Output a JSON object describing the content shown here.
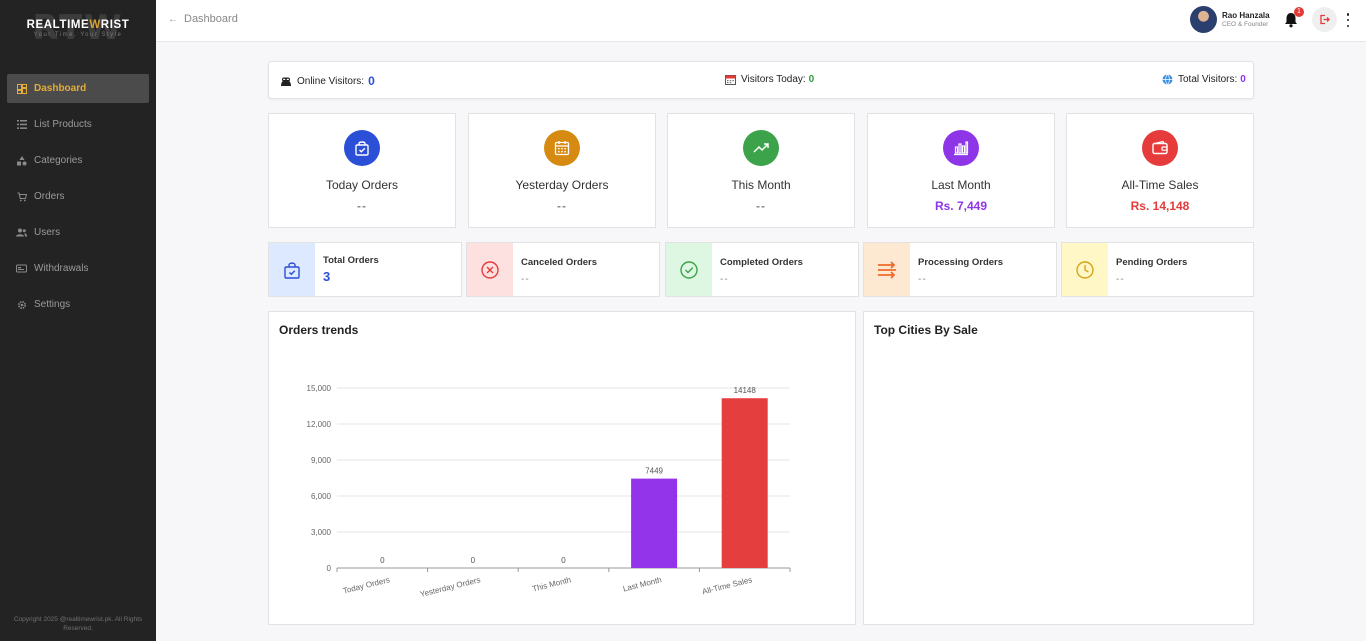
{
  "sidebar": {
    "logo": {
      "bg": "RTW",
      "main_a": "REALTIME",
      "main_b": "W",
      "main_c": "RIST",
      "tagline": "Your Time, Your Style"
    },
    "items": [
      {
        "label": "Dashboard",
        "icon": "dashboard-icon",
        "active": true
      },
      {
        "label": "List Products",
        "icon": "list-icon"
      },
      {
        "label": "Categories",
        "icon": "categories-icon"
      },
      {
        "label": "Orders",
        "icon": "cart-icon"
      },
      {
        "label": "Users",
        "icon": "users-icon"
      },
      {
        "label": "Withdrawals",
        "icon": "wallet-icon"
      },
      {
        "label": "Settings",
        "icon": "gear-icon"
      }
    ],
    "copyright": "Copyright 2025 @realtimewrist.pk. All Rights Reserved."
  },
  "header": {
    "breadcrumb": "Dashboard",
    "user_name": "Rao Hanzala",
    "user_role": "CEO & Founder",
    "notification_count": "1"
  },
  "visitors": {
    "online_label": "Online Visitors:",
    "online_value": "0",
    "today_label": "Visitors Today:",
    "today_value": "0",
    "total_label": "Total Visitors:",
    "total_value": "0"
  },
  "stats": [
    {
      "label": "Today Orders",
      "value": "--",
      "color": "#2b4fd6",
      "icon": "shopping-bag-icon"
    },
    {
      "label": "Yesterday Orders",
      "value": "--",
      "color": "#d68a12",
      "icon": "calendar-icon"
    },
    {
      "label": "This Month",
      "value": "--",
      "color": "#3da34a",
      "icon": "trending-up-icon"
    },
    {
      "label": "Last Month",
      "value": "Rs. 7,449",
      "color": "#8e35e8",
      "icon": "bar-chart-icon"
    },
    {
      "label": "All-Time Sales",
      "value": "Rs. 14,148",
      "color": "#e53b3b",
      "icon": "wallet-icon"
    }
  ],
  "orders": [
    {
      "label": "Total Orders",
      "value": "3",
      "bg": "#dde9ff",
      "color": "#2b4fd6",
      "icon": "shopping-bag-icon"
    },
    {
      "label": "Canceled Orders",
      "value": "--",
      "bg": "#fde0e0",
      "color": "#e53b3b",
      "icon": "x-circle-icon"
    },
    {
      "label": "Completed Orders",
      "value": "--",
      "bg": "#def7e3",
      "color": "#3da34a",
      "icon": "check-circle-icon"
    },
    {
      "label": "Processing Orders",
      "value": "--",
      "bg": "#fde8d2",
      "color": "#ef6a2a",
      "icon": "processing-icon"
    },
    {
      "label": "Pending Orders",
      "value": "--",
      "bg": "#fff8c6",
      "color": "#d4a419",
      "icon": "clock-icon"
    }
  ],
  "trends_title": "Orders trends",
  "cities_title": "Top Cities By Sale",
  "chart_data": {
    "type": "bar",
    "categories": [
      "Today Orders",
      "Yesterday Orders",
      "This Month",
      "Last Month",
      "All-Time Sales"
    ],
    "values": [
      0,
      0,
      0,
      7449,
      14148
    ],
    "data_labels": [
      "0",
      "0",
      "0",
      "7449",
      "14148"
    ],
    "colors": [
      "#9c9c9c",
      "#9c9c9c",
      "#9c9c9c",
      "#9333ea",
      "#e53e3e"
    ],
    "yticks": [
      "0",
      "3,000",
      "6,000",
      "9,000",
      "12,000",
      "15,000"
    ],
    "ylim": [
      0,
      15000
    ],
    "grid": true
  }
}
